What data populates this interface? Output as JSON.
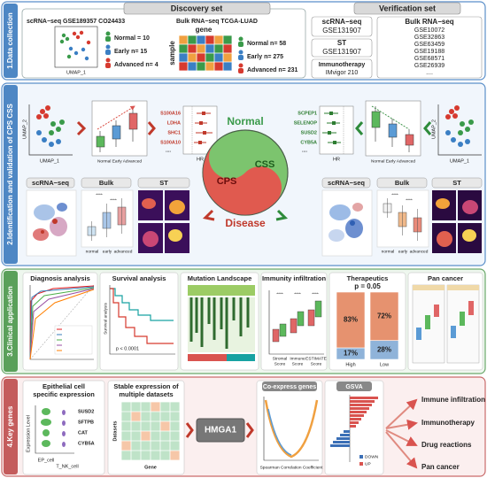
{
  "data_collection": {
    "label": "1.Data collection",
    "discovery": {
      "title": "Discovery set",
      "scrna": "scRNA−seq GSE189357 CO24433",
      "umap_x": "UMAP_1",
      "sc_groups": [
        "Normal = 10",
        "Early n= 15",
        "Advanced n= 4"
      ],
      "bulk": "Bulk RNA−seq TCGA-LUAD",
      "gene": "gene",
      "sample": "sample",
      "bulk_groups": [
        "Normal n= 58",
        "Early n= 275",
        "Advanced n= 231"
      ]
    },
    "verification": {
      "title": "Verification set",
      "sc": [
        "scRNA−seq",
        "GSE131907"
      ],
      "st": [
        "ST",
        "GSE131907"
      ],
      "immuno": [
        "Immunotherapy",
        "IMvigor 210"
      ],
      "bulk": [
        "Bulk RNA−seq",
        "GSE10072",
        "GSE32863",
        "GSE63459",
        "GSE19188",
        "GSE68571",
        "GSE26939",
        "...."
      ]
    }
  },
  "identification": {
    "label": "2.Identification and validation of CPS CSS",
    "umap_x": "UMAP_1",
    "umap_y": "UMAP_2",
    "groups": "Normal Early Advanced",
    "hr": "HR",
    "more": "....",
    "cps_genes": [
      "S100A16",
      "LDHA",
      "SHC1",
      "S100A10"
    ],
    "css_genes": [
      "SCPEP1",
      "SELENOP",
      "SUSD2",
      "CYB5A"
    ],
    "circle": {
      "top": "Normal",
      "bottom": "Disease",
      "left": "CPS",
      "right": "CSS"
    },
    "panels": [
      "scRNA−seq",
      "Bulk",
      "ST"
    ],
    "bulk_groups": [
      "normal",
      "early",
      "advanced"
    ],
    "sig": "****"
  },
  "clinical": {
    "label": "3.Clinical application",
    "panels": [
      "Diagnosis analysis",
      "Survival analysis",
      "Mutation Landscape",
      "Immunity infiltration",
      "Therapeutics",
      "Pan cancer"
    ],
    "survival_p": "p < 0.0001",
    "immunity_groups": [
      [
        "Stromal",
        "Score"
      ],
      [
        "Immune",
        "Score"
      ],
      [
        "ESTIMATE",
        "Score"
      ]
    ],
    "sig": "****",
    "therapeutics": {
      "p": "p = 0.05",
      "groups": [
        "High",
        "Low"
      ],
      "values": [
        [
          83,
          17
        ],
        [
          72,
          28
        ]
      ],
      "value_labels": [
        [
          "83%",
          "17%"
        ],
        [
          "72%",
          "28%"
        ]
      ]
    }
  },
  "key_genes": {
    "label": "4.Key genes",
    "epithelial": {
      "title": [
        "Epithelial cell",
        "specific expression"
      ],
      "genes": [
        "SUSD2",
        "SFTPB",
        "CAT",
        "CYB5A"
      ],
      "y": "Expression Level",
      "cells": [
        "EP_cell",
        "T_NK_cell"
      ]
    },
    "stable": {
      "title": [
        "Stable expression of",
        "multiple datasets"
      ],
      "y": "Datasets",
      "x": "Gene"
    },
    "hub": "HMGA1",
    "coexpress": {
      "title": "Co-express genes",
      "x": "Spearman Correlation Coefficient"
    },
    "gsva": {
      "title": "GSVA",
      "legend": [
        "DOWN",
        "UP"
      ]
    },
    "outcomes": [
      "Immune infiltration",
      "Immunotherapy",
      "Drug reactions",
      "Pan cancer"
    ]
  }
}
